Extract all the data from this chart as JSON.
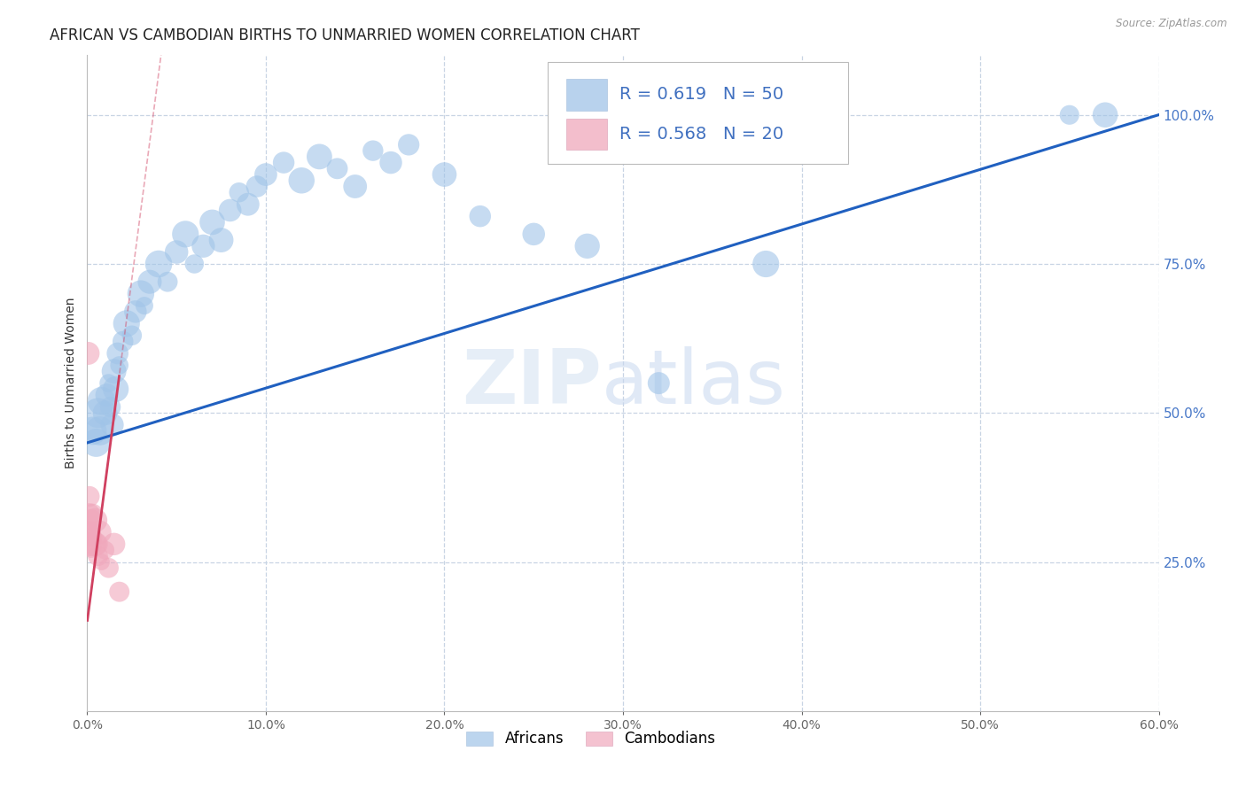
{
  "title": "AFRICAN VS CAMBODIAN BIRTHS TO UNMARRIED WOMEN CORRELATION CHART",
  "source": "Source: ZipAtlas.com",
  "ylabel": "Births to Unmarried Women",
  "xlim": [
    0.0,
    60.0
  ],
  "ylim": [
    0.0,
    110.0
  ],
  "yplot_max": 100.0,
  "xticks": [
    0.0,
    10.0,
    20.0,
    30.0,
    40.0,
    50.0,
    60.0
  ],
  "yticks_right": [
    25.0,
    50.0,
    75.0,
    100.0
  ],
  "african_R": 0.619,
  "african_N": 50,
  "cambodian_R": 0.568,
  "cambodian_N": 20,
  "african_color": "#a0c4e8",
  "cambodian_color": "#f0a8bc",
  "regression_african_color": "#2060C0",
  "regression_cambodian_color": "#D04060",
  "watermark_zip": "ZIP",
  "watermark_atlas": "atlas",
  "african_scatter": [
    [
      0.3,
      47.0
    ],
    [
      0.5,
      45.0
    ],
    [
      0.6,
      50.0
    ],
    [
      0.7,
      47.0
    ],
    [
      0.8,
      52.0
    ],
    [
      1.0,
      50.0
    ],
    [
      1.1,
      53.0
    ],
    [
      1.2,
      55.0
    ],
    [
      1.3,
      51.0
    ],
    [
      1.4,
      48.0
    ],
    [
      1.5,
      57.0
    ],
    [
      1.6,
      54.0
    ],
    [
      1.7,
      60.0
    ],
    [
      1.8,
      58.0
    ],
    [
      2.0,
      62.0
    ],
    [
      2.2,
      65.0
    ],
    [
      2.5,
      63.0
    ],
    [
      2.7,
      67.0
    ],
    [
      3.0,
      70.0
    ],
    [
      3.2,
      68.0
    ],
    [
      3.5,
      72.0
    ],
    [
      4.0,
      75.0
    ],
    [
      4.5,
      72.0
    ],
    [
      5.0,
      77.0
    ],
    [
      5.5,
      80.0
    ],
    [
      6.0,
      75.0
    ],
    [
      6.5,
      78.0
    ],
    [
      7.0,
      82.0
    ],
    [
      7.5,
      79.0
    ],
    [
      8.0,
      84.0
    ],
    [
      8.5,
      87.0
    ],
    [
      9.0,
      85.0
    ],
    [
      9.5,
      88.0
    ],
    [
      10.0,
      90.0
    ],
    [
      11.0,
      92.0
    ],
    [
      12.0,
      89.0
    ],
    [
      13.0,
      93.0
    ],
    [
      14.0,
      91.0
    ],
    [
      15.0,
      88.0
    ],
    [
      16.0,
      94.0
    ],
    [
      17.0,
      92.0
    ],
    [
      18.0,
      95.0
    ],
    [
      20.0,
      90.0
    ],
    [
      22.0,
      83.0
    ],
    [
      25.0,
      80.0
    ],
    [
      28.0,
      78.0
    ],
    [
      32.0,
      55.0
    ],
    [
      38.0,
      75.0
    ],
    [
      55.0,
      100.0
    ],
    [
      57.0,
      100.0
    ]
  ],
  "cambodian_scatter": [
    [
      0.05,
      60.0
    ],
    [
      0.1,
      33.0
    ],
    [
      0.12,
      36.0
    ],
    [
      0.15,
      30.0
    ],
    [
      0.18,
      28.0
    ],
    [
      0.2,
      32.0
    ],
    [
      0.22,
      27.0
    ],
    [
      0.25,
      30.0
    ],
    [
      0.3,
      33.0
    ],
    [
      0.35,
      29.0
    ],
    [
      0.4,
      28.0
    ],
    [
      0.45,
      32.0
    ],
    [
      0.5,
      28.0
    ],
    [
      0.6,
      26.0
    ],
    [
      0.7,
      30.0
    ],
    [
      0.8,
      25.0
    ],
    [
      1.0,
      27.0
    ],
    [
      1.2,
      24.0
    ],
    [
      1.5,
      28.0
    ],
    [
      1.8,
      20.0
    ]
  ],
  "background_color": "#ffffff",
  "grid_color": "#c8d4e4",
  "title_fontsize": 12,
  "axis_label_fontsize": 10,
  "tick_fontsize": 10,
  "legend_fontsize": 14
}
